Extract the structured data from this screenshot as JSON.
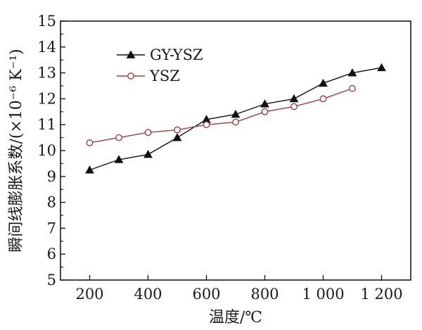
{
  "chart_data": {
    "type": "line",
    "xlabel": "温度/℃",
    "ylabel": "瞬间线膨胀系数/(×10⁻⁶ K⁻¹)",
    "xlim": [
      100,
      1300
    ],
    "ylim": [
      5,
      15
    ],
    "x_ticks": [
      200,
      400,
      600,
      800,
      1000,
      1200
    ],
    "x_tick_labels": [
      "200",
      "400",
      "600",
      "800",
      "1 000",
      "1 200"
    ],
    "y_ticks": [
      5,
      6,
      7,
      8,
      9,
      10,
      11,
      12,
      13,
      14,
      15
    ],
    "y_tick_labels": [
      "5",
      "6",
      "7",
      "8",
      "9",
      "10",
      "11",
      "12",
      "13",
      "14",
      "15"
    ],
    "grid": false,
    "legend": "top-left",
    "series": [
      {
        "name": "GY-YSZ",
        "marker": "filled-triangle",
        "color": "#111111",
        "x": [
          200,
          300,
          400,
          500,
          600,
          700,
          800,
          900,
          1000,
          1100,
          1200
        ],
        "y": [
          9.25,
          9.65,
          9.85,
          10.5,
          11.2,
          11.4,
          11.8,
          12.0,
          12.6,
          13.0,
          13.2
        ]
      },
      {
        "name": "YSZ",
        "marker": "open-circle",
        "color": "#a0403c",
        "x": [
          200,
          300,
          400,
          500,
          600,
          700,
          800,
          900,
          1000,
          1100
        ],
        "y": [
          10.3,
          10.5,
          10.7,
          10.8,
          11.0,
          11.1,
          11.5,
          11.7,
          12.0,
          12.4
        ]
      }
    ]
  }
}
